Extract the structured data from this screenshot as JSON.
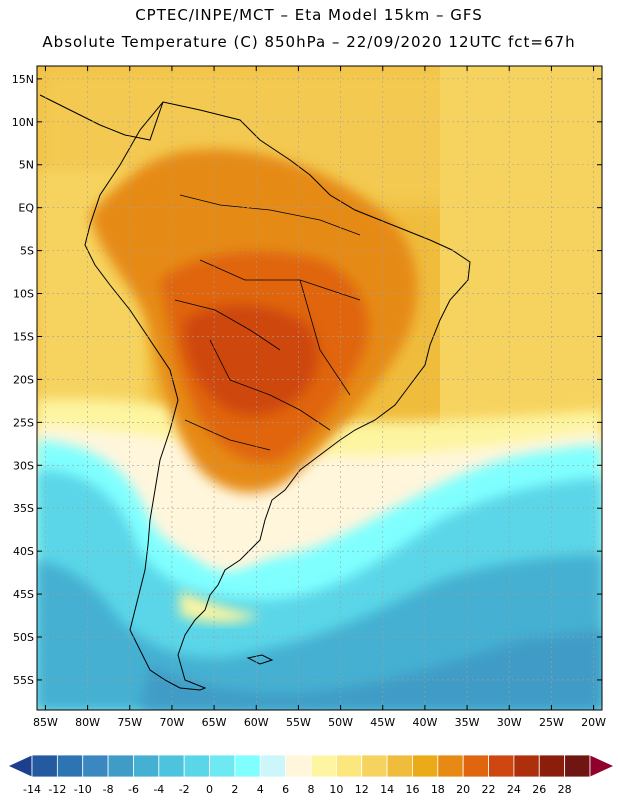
{
  "header": {
    "line1": "CPTEC/INPE/MCT –  Eta Model 15km – GFS",
    "line2": "Absolute Temperature (C) 850hPa – 22/09/2020 12UTC fct=67h"
  },
  "map": {
    "lat_labels": [
      "15N",
      "10N",
      "5N",
      "EQ",
      "5S",
      "10S",
      "15S",
      "20S",
      "25S",
      "30S",
      "35S",
      "40S",
      "45S",
      "50S",
      "55S"
    ],
    "lon_labels": [
      "85W",
      "80W",
      "75W",
      "70W",
      "65W",
      "60W",
      "55W",
      "50W",
      "45W",
      "40W",
      "35W",
      "30W",
      "25W",
      "20W"
    ],
    "lon_range": [
      -86,
      -19
    ],
    "lat_range": [
      -58.5,
      16.5
    ]
  },
  "colorbar": {
    "ticks": [
      "-14",
      "-12",
      "-10",
      "-8",
      "-6",
      "-4",
      "-2",
      "0",
      "2",
      "4",
      "6",
      "8",
      "10",
      "12",
      "14",
      "16",
      "18",
      "20",
      "22",
      "24",
      "26",
      "28"
    ],
    "colors": [
      "#1c3f8e",
      "#235aa0",
      "#2d74b3",
      "#3a88bf",
      "#3f9cc6",
      "#45b0d2",
      "#4ec3de",
      "#5ad6e8",
      "#6ee8f2",
      "#80ffff",
      "#cdf6fa",
      "#fff6dc",
      "#fdf5a0",
      "#fbe77d",
      "#f6d35e",
      "#f0bc3c",
      "#ebaa18",
      "#e68a14",
      "#e0650f",
      "#ce4710",
      "#ad2f0c",
      "#8a1e0a",
      "#701612",
      "#90002c"
    ]
  },
  "legend_colors": {
    "coast": "#000000",
    "grid": "#a0a0a0"
  }
}
